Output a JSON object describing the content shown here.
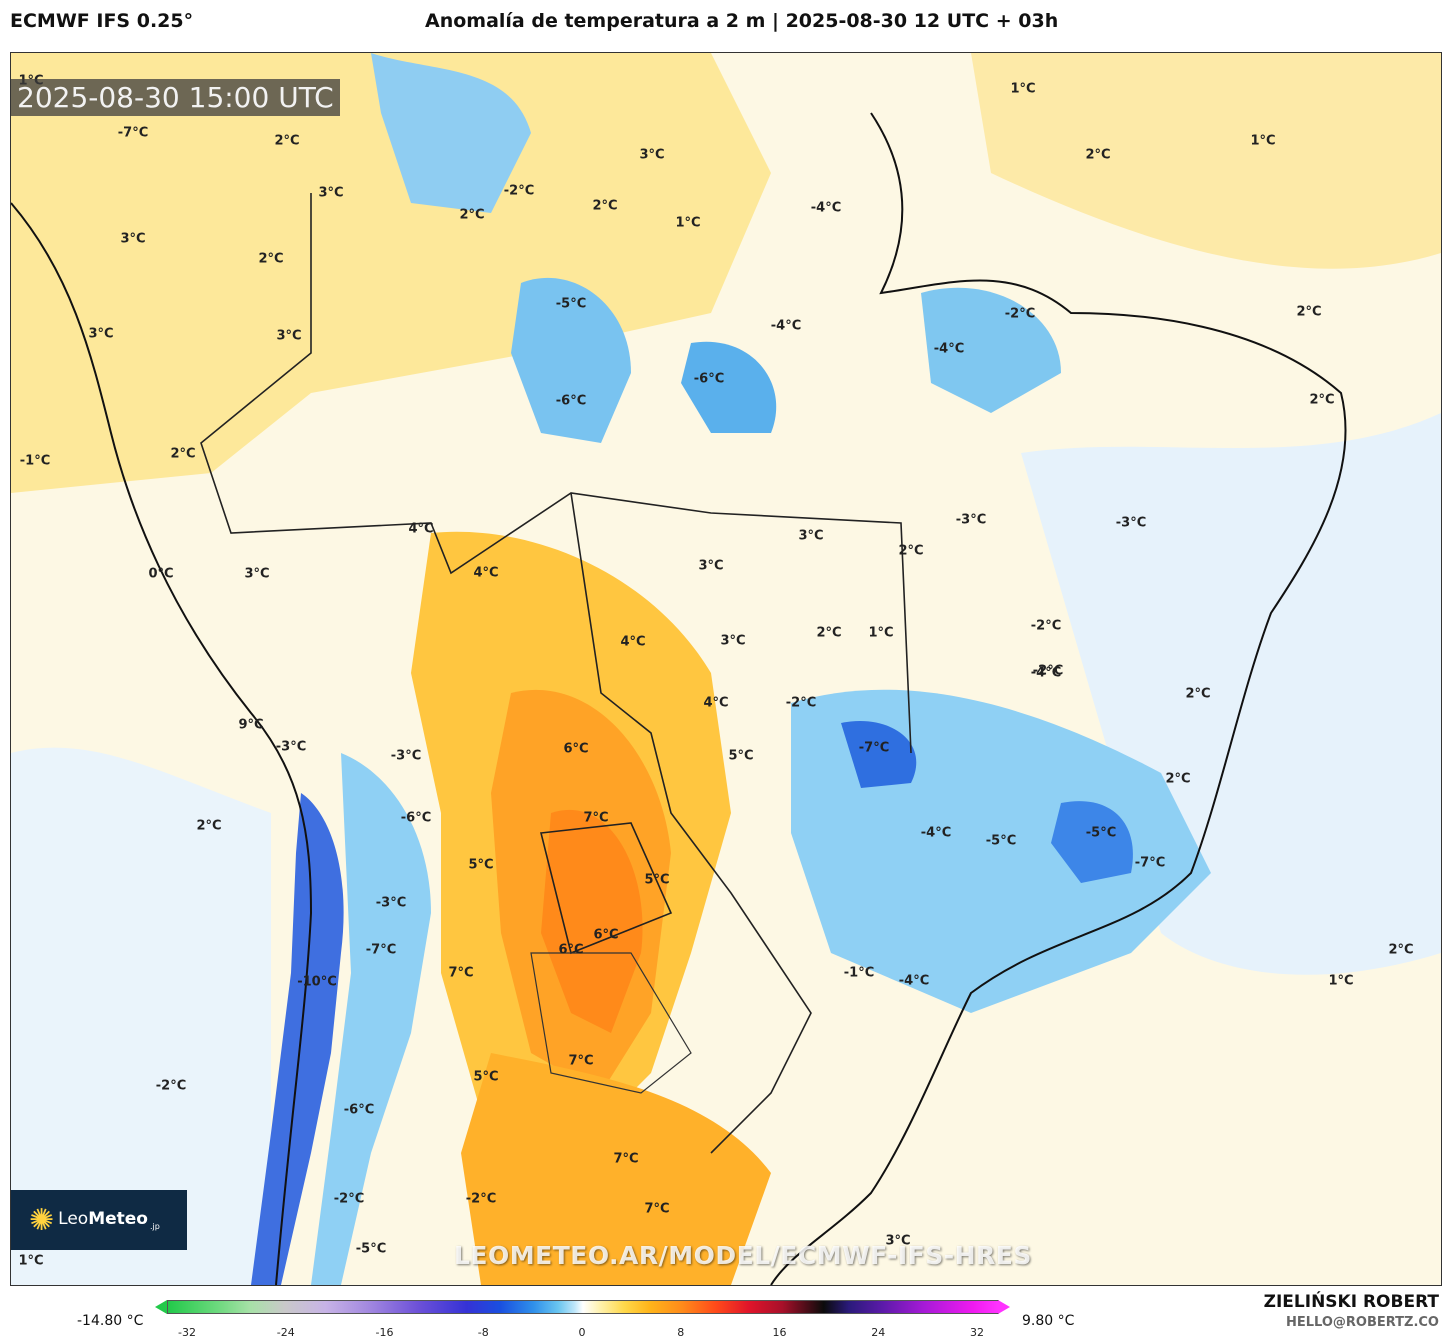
{
  "header": {
    "model": "ECMWF IFS 0.25°",
    "title": "Anomalía de temperatura a 2 m | 2025-08-30 12 UTC + 03h"
  },
  "map": {
    "valid_time": "2025-08-30 15:00 UTC",
    "watermark": "LEOMETEO.AR/MODEL/ECMWF-IFS-HRES",
    "logo": {
      "name_light": "Leo",
      "name_bold": "Meteo",
      "suffix": ".jp"
    },
    "labels": [
      "1°C",
      "-7°C",
      "2°C",
      "3°C",
      "-2°C",
      "2°C",
      "1°C",
      "-4°C",
      "1°C",
      "2°C",
      "3°C",
      "2°C",
      "3°C",
      "-5°C",
      "-6°C",
      "-6°C",
      "-4°C",
      "-4°C",
      "-2°C",
      "1°C",
      "2°C",
      "3°C",
      "2°C",
      "2°C",
      "-1°C",
      "3°C",
      "2°C",
      "4°C",
      "-3°C",
      "-3°C",
      "3°C",
      "0°C",
      "4°C",
      "3°C",
      "3°C",
      "2°C",
      "4°C",
      "3°C",
      "2°C",
      "1°C",
      "-2°C",
      "-4°C",
      "9°C",
      "-3°C",
      "4°C",
      "-2°C",
      "-2°C",
      "2°C",
      "-3°C",
      "6°C",
      "5°C",
      "-7°C",
      "2°C",
      "-6°C",
      "7°C",
      "2°C",
      "5°C",
      "5°C",
      "-4°C",
      "-5°C",
      "-5°C",
      "-7°C",
      "-3°C",
      "-10°C",
      "-7°C",
      "6°C",
      "6°C",
      "7°C",
      "-1°C",
      "-4°C",
      "2°C",
      "1°C",
      "7°C",
      "-2°C",
      "5°C",
      "-6°C",
      "7°C",
      "-2°C",
      "-2°C",
      "7°C",
      "3°C",
      "-5°C",
      "1°C"
    ]
  },
  "colorbar": {
    "min_label": "-14.80 °C",
    "max_label": "9.80 °C",
    "ticks": [
      "-32",
      "-24",
      "-16",
      "-8",
      "0",
      "8",
      "16",
      "24",
      "32"
    ],
    "colors": [
      "#22c94a",
      "#c9c9c9",
      "#6e52d8",
      "#1a4fe0",
      "#ffffff",
      "#ffb51a",
      "#e0142a",
      "#0b0b0b",
      "#ff33ff"
    ]
  },
  "credit": {
    "author": "ZIELIŃSKI ROBERT",
    "email": "HELLO@ROBERTZ.CO"
  }
}
